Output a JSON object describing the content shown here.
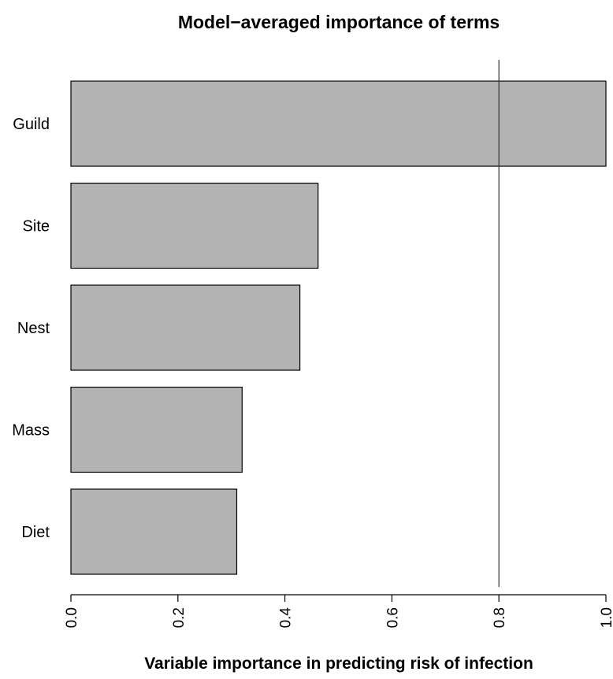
{
  "chart_data": {
    "type": "bar",
    "orientation": "horizontal",
    "title": "Model−averaged importance of terms",
    "xlabel": "Variable importance in predicting risk of infection",
    "ylabel": "",
    "categories": [
      "Guild",
      "Site",
      "Nest",
      "Mass",
      "Diet"
    ],
    "values": [
      1.0,
      0.462,
      0.428,
      0.32,
      0.31
    ],
    "xlim": [
      0,
      1
    ],
    "x_ticks": [
      "0.0",
      "0.2",
      "0.4",
      "0.6",
      "0.8",
      "1.0"
    ],
    "x_tick_values": [
      0,
      0.2,
      0.4,
      0.6,
      0.8,
      1.0
    ],
    "reference_line": 0.8,
    "grid": false,
    "legend": "none",
    "bar_color": "#b3b3b3",
    "bar_outline_color": "#000000",
    "reference_line_color": "#333333"
  }
}
